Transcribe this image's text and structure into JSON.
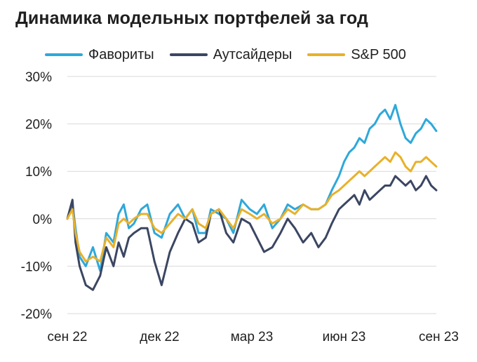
{
  "title": "Динамика модельных портфелей за год",
  "chart_data": {
    "type": "line",
    "title": "Динамика модельных портфелей за год",
    "xlabel": "",
    "ylabel": "",
    "ylim": [
      -20,
      30
    ],
    "y_ticks": [
      30,
      20,
      10,
      0,
      -10,
      -20
    ],
    "y_tick_labels": [
      "30%",
      "20%",
      "10%",
      "0%",
      "-10%",
      "-20%"
    ],
    "x_ticks": [
      "сен 22",
      "дек 22",
      "мар 23",
      "июн 23",
      "сен 23"
    ],
    "grid": true,
    "legend_position": "top",
    "series": [
      {
        "name": "Фавориты",
        "color": "#2ea8da",
        "x": [
          0,
          5,
          8,
          12,
          18,
          25,
          32,
          38,
          45,
          50,
          55,
          60,
          65,
          72,
          78,
          85,
          92,
          100,
          108,
          115,
          122,
          128,
          135,
          140,
          148,
          155,
          162,
          170,
          178,
          185,
          192,
          200,
          208,
          215,
          222,
          230,
          238,
          245,
          252,
          258,
          265,
          270,
          275,
          280,
          285,
          290,
          295,
          300,
          305,
          310,
          315,
          320,
          325,
          330,
          335,
          340,
          345,
          350,
          355,
          360
        ],
        "values": [
          0,
          3,
          -2,
          -8,
          -10,
          -6,
          -11,
          -3,
          -5,
          1,
          3,
          -2,
          -1,
          2,
          3,
          -3,
          -4,
          1,
          3,
          0,
          2,
          -3,
          -3,
          2,
          1,
          0,
          -3,
          4,
          2,
          1,
          3,
          -2,
          0,
          3,
          2,
          3,
          2,
          2,
          3,
          6,
          9,
          12,
          14,
          15,
          17,
          16,
          19,
          20,
          22,
          23,
          21,
          24,
          20,
          17,
          16,
          18,
          19,
          21,
          20,
          18.5
        ]
      },
      {
        "name": "Аутсайдеры",
        "color": "#3b4662",
        "x": [
          0,
          5,
          8,
          12,
          18,
          25,
          32,
          38,
          45,
          50,
          55,
          60,
          65,
          72,
          78,
          85,
          92,
          100,
          108,
          115,
          122,
          128,
          135,
          140,
          148,
          155,
          162,
          170,
          178,
          185,
          192,
          200,
          208,
          215,
          222,
          230,
          238,
          245,
          252,
          258,
          265,
          270,
          275,
          280,
          285,
          290,
          295,
          300,
          305,
          310,
          315,
          320,
          325,
          330,
          335,
          340,
          345,
          350,
          355,
          360
        ],
        "values": [
          0,
          4,
          -5,
          -10,
          -14,
          -15,
          -12,
          -6,
          -10,
          -5,
          -8,
          -4,
          -3,
          -2,
          -2,
          -9,
          -14,
          -7,
          -3,
          0,
          -1,
          -5,
          -4,
          1,
          2,
          -3,
          -5,
          0,
          -1,
          -4,
          -7,
          -6,
          -3,
          0,
          -2,
          -5,
          -3,
          -6,
          -4,
          -1,
          2,
          3,
          4,
          5,
          3,
          6,
          4,
          5,
          6,
          7,
          7,
          9,
          8,
          7,
          8,
          6,
          7,
          9,
          7,
          6
        ]
      },
      {
        "name": "S&P 500",
        "color": "#e8b12a",
        "x": [
          0,
          5,
          8,
          12,
          18,
          25,
          32,
          38,
          45,
          50,
          55,
          60,
          65,
          72,
          78,
          85,
          92,
          100,
          108,
          115,
          122,
          128,
          135,
          140,
          148,
          155,
          162,
          170,
          178,
          185,
          192,
          200,
          208,
          215,
          222,
          230,
          238,
          245,
          252,
          258,
          265,
          270,
          275,
          280,
          285,
          290,
          295,
          300,
          305,
          310,
          315,
          320,
          325,
          330,
          335,
          340,
          345,
          350,
          355,
          360
        ],
        "values": [
          0,
          2,
          -3,
          -7,
          -9,
          -8,
          -9,
          -4,
          -6,
          -1,
          0,
          -1,
          0,
          1,
          1,
          -2,
          -3,
          -1,
          1,
          0,
          2,
          -1,
          -2,
          1,
          2,
          0,
          -2,
          2,
          1,
          0,
          1,
          -1,
          0,
          2,
          1,
          3,
          2,
          2,
          3,
          5,
          6,
          7,
          8,
          9,
          10,
          9,
          10,
          11,
          12,
          13,
          12,
          14,
          13,
          11,
          10,
          12,
          12,
          13,
          12,
          11
        ]
      }
    ]
  }
}
